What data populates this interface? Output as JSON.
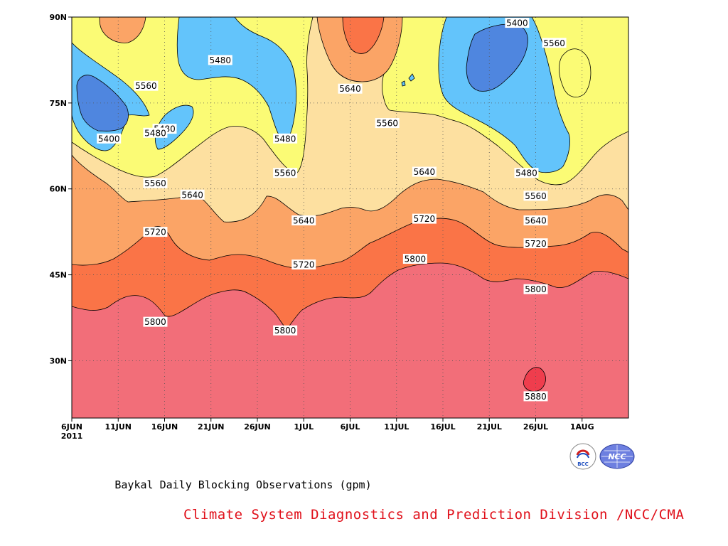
{
  "chart_data": {
    "type": "heatmap",
    "subtype": "filled-contour time-latitude",
    "title": "Baykal Daily Blocking Observations (gpm)",
    "xlabel": "",
    "ylabel": "",
    "y_range": [
      20,
      90
    ],
    "y_ticks": [
      "30N",
      "45N",
      "60N",
      "75N",
      "90N"
    ],
    "y_tick_values": [
      30,
      45,
      60,
      75,
      90
    ],
    "x_start": "2011-06-06",
    "x_end": "2011-08-05",
    "x_ticks": [
      "6JUN",
      "11JUN",
      "16JUN",
      "21JUN",
      "26JUN",
      "1JUL",
      "6JUL",
      "11JUL",
      "16JUL",
      "21JUL",
      "26JUL",
      "1AUG"
    ],
    "x_year_label": "2011",
    "grid": "dotted",
    "contour_levels": [
      5400,
      5480,
      5560,
      5640,
      5720,
      5800,
      5880
    ],
    "band_colors": {
      "lt_5400": "#4f86df",
      "5400_5480": "#63c4fb",
      "5480_5560": "#fbfb75",
      "5560_5640": "#fde0a0",
      "5640_5720": "#fba466",
      "5720_5800": "#fa7447",
      "5800_5880": "#f26e79",
      "gt_5880": "#ef3d4d"
    },
    "contour_labels": [
      {
        "value": "5400",
        "date": "2011-07-24",
        "lat": 89.0
      },
      {
        "value": "5560",
        "date": "2011-07-28",
        "lat": 85.5
      },
      {
        "value": "5480",
        "date": "2011-06-22",
        "lat": 82.5
      },
      {
        "value": "5560",
        "date": "2011-06-14",
        "lat": 78.0
      },
      {
        "value": "5640",
        "date": "2011-07-06",
        "lat": 77.5
      },
      {
        "value": "5560",
        "date": "2011-07-10",
        "lat": 71.5
      },
      {
        "value": "5480",
        "date": "2011-06-16",
        "lat": 70.5
      },
      {
        "value": "5480",
        "date": "2011-06-15",
        "lat": 69.8
      },
      {
        "value": "5400",
        "date": "2011-06-10",
        "lat": 68.8
      },
      {
        "value": "5480",
        "date": "2011-06-29",
        "lat": 68.8
      },
      {
        "value": "5640",
        "date": "2011-07-14",
        "lat": 63.0
      },
      {
        "value": "5480",
        "date": "2011-07-25",
        "lat": 62.8
      },
      {
        "value": "5560",
        "date": "2011-06-29",
        "lat": 62.8
      },
      {
        "value": "5560",
        "date": "2011-06-15",
        "lat": 61.0
      },
      {
        "value": "5640",
        "date": "2011-06-19",
        "lat": 59.0
      },
      {
        "value": "5560",
        "date": "2011-07-26",
        "lat": 58.8
      },
      {
        "value": "5720",
        "date": "2011-07-14",
        "lat": 54.8
      },
      {
        "value": "5640",
        "date": "2011-07-01",
        "lat": 54.5
      },
      {
        "value": "5640",
        "date": "2011-07-26",
        "lat": 54.5
      },
      {
        "value": "5720",
        "date": "2011-06-15",
        "lat": 52.5
      },
      {
        "value": "5720",
        "date": "2011-07-26",
        "lat": 50.5
      },
      {
        "value": "5800",
        "date": "2011-07-13",
        "lat": 47.8
      },
      {
        "value": "5720",
        "date": "2011-07-01",
        "lat": 46.8
      },
      {
        "value": "5800",
        "date": "2011-07-26",
        "lat": 42.5
      },
      {
        "value": "5800",
        "date": "2011-06-15",
        "lat": 36.8
      },
      {
        "value": "5800",
        "date": "2011-06-29",
        "lat": 35.3
      },
      {
        "value": "5880",
        "date": "2011-07-26",
        "lat": 23.8
      }
    ]
  },
  "caption": "Baykal Daily Blocking Observations (gpm)",
  "credit": "Climate System Diagnostics and Prediction Division /NCC/CMA",
  "logos": {
    "left_text": "BCC",
    "right_text": "NCC"
  }
}
